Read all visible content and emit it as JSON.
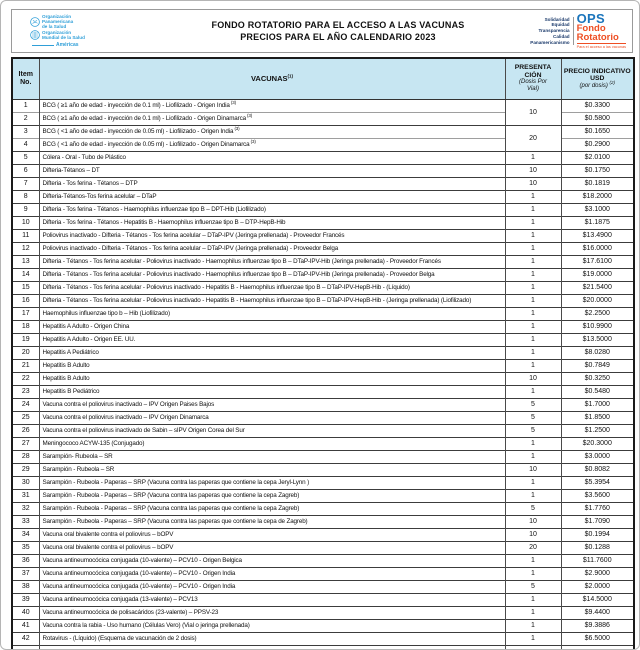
{
  "header": {
    "title_line1": "FONDO ROTATORIO PARA EL ACCESO A LAS VACUNAS",
    "title_line2": "PRECIOS PARA EL AÑO CALENDARIO 2023",
    "paho_logo": {
      "org1": [
        "Organización",
        "Panamericana",
        "de la Salud"
      ],
      "org2": [
        "Organización",
        "Mundial de la Salud"
      ],
      "region": "Américas"
    },
    "ops_logo": {
      "values": [
        "Solidaridad",
        "Equidad",
        "Transparencia",
        "Calidad",
        "Panamericanismo"
      ],
      "acronym": "OPS",
      "name_line1": "Fondo",
      "name_line2": "Rotatorio",
      "tagline": "Para el acceso a las vacunas"
    },
    "colors": {
      "paho_blue": "#2f9fd8",
      "ops_blue": "#1b75bc",
      "ops_orange": "#ee4e23",
      "navy": "#1b3a6b",
      "table_header_bg": "#c7e6f2"
    }
  },
  "table": {
    "header": {
      "item_line1": "Item",
      "item_line2": "No.",
      "vacunas": "VACUNAS",
      "vacunas_sup": "(1)",
      "presentacion_line1": "PRESENTA",
      "presentacion_line2": "CIÓN",
      "presentacion_sub1": "(Dosis Por",
      "presentacion_sub2": "Vial)",
      "precio_line1": "PRECIO INDICATIVO",
      "precio_line2": "USD",
      "precio_sub": "(por dosis)",
      "precio_sup": "(2)"
    },
    "rows": [
      {
        "no": "1",
        "vacuna": "BCG ( ≥1 año de edad - inyección de 0.1 ml) - Liofilizado - Origen India",
        "note": "(3)",
        "dosis": "10",
        "span": 2,
        "precio": "$0.3300"
      },
      {
        "no": "2",
        "vacuna": "BCG ( ≥1 año de edad - inyección de 0.1 ml) - Liofilizado - Origen Dinamarca",
        "note": "(3)",
        "precio": "$0.5800",
        "light": true
      },
      {
        "no": "3",
        "vacuna": "BCG ( <1 año de edad - inyección de 0.05 ml) - Liofilizado - Origen India",
        "note": "(3)",
        "dosis": "20",
        "span": 2,
        "precio": "$0.1650"
      },
      {
        "no": "4",
        "vacuna": "BCG ( <1 año de edad - inyección de 0.05 ml) - Liofilizado - Origen Dinamarca",
        "note": "(3)",
        "precio": "$0.2900",
        "light": true
      },
      {
        "no": "5",
        "vacuna": "Cólera - Oral - Tubo de Plástico",
        "dosis": "1",
        "precio": "$2.0100"
      },
      {
        "no": "6",
        "vacuna": "Difteria-Tétanos – DT",
        "dosis": "10",
        "precio": "$0.1750"
      },
      {
        "no": "7",
        "vacuna": "Difteria - Tos ferina - Tétanos – DTP",
        "dosis": "10",
        "precio": "$0.1819"
      },
      {
        "no": "8",
        "vacuna": "Difteria-Tétanos-Tos ferina acelular – DTaP",
        "dosis": "1",
        "precio": "$18.2000"
      },
      {
        "no": "9",
        "vacuna": "Difteria - Tos ferina - Tétanos - Haemophilus influenzae tipo B – DPT-Hib (Liofilizado)",
        "dosis": "1",
        "precio": "$3.1000"
      },
      {
        "no": "10",
        "vacuna": "Difteria - Tos ferina - Tétanos - Hepatitis B - Haemophilus influenzae tipo B – DTP-HepB-Hib",
        "dosis": "1",
        "precio": "$1.1875"
      },
      {
        "no": "11",
        "vacuna": "Poliovirus inactivado - Difteria - Tétanos - Tos ferina acelular – DTaP-IPV (Jeringa prellenada) - Proveedor Francés",
        "dosis": "1",
        "precio": "$13.4900"
      },
      {
        "no": "12",
        "vacuna": "Poliovirus inactivado - Difteria - Tétanos - Tos ferina acelular – DTaP-IPV (Jeringa prellenada) - Proveedor Belga",
        "dosis": "1",
        "precio": "$16.0000"
      },
      {
        "no": "13",
        "vacuna": "Difteria - Tétanos - Tos ferina acelular - Poliovirus inactivado - Haemophilus influenzae tipo B – DTaP-IPV-Hib (Jeringa prellenada) - Proveedor Francés",
        "dosis": "1",
        "precio": "$17.6100"
      },
      {
        "no": "14",
        "vacuna": "Difteria - Tétanos - Tos ferina acelular - Poliovirus inactivado - Haemophilus influenzae tipo B – DTaP-IPV-Hib (Jeringa prellenada) - Proveedor Belga",
        "dosis": "1",
        "precio": "$19.0000"
      },
      {
        "no": "15",
        "vacuna": "Difteria - Tétanos - Tos ferina acelular - Poliovirus inactivado - Hepatitis B - Haemophilus influenzae tipo B – DTaP-IPV-HepB-Hib - (Líquido)",
        "dosis": "1",
        "precio": "$21.5400"
      },
      {
        "no": "16",
        "vacuna": "Difteria - Tétanos - Tos ferina acelular - Poliovirus inactivado - Hepatitis B - Haemophilus influenzae tipo B – DTaP-IPV-HepB-Hib - (Jeringa prellenada) (Liofilizado)",
        "dosis": "1",
        "precio": "$20.0000"
      },
      {
        "no": "17",
        "vacuna": "Haemophilus influenzae tipo b – Hib (Liofilizado)",
        "dosis": "1",
        "precio": "$2.2500"
      },
      {
        "no": "18",
        "vacuna": "Hepatitis A Adulto - Origen China",
        "dosis": "1",
        "precio": "$10.9900"
      },
      {
        "no": "19",
        "vacuna": "Hepatitis A Adulto - Origen EE. UU.",
        "dosis": "1",
        "precio": "$13.5000"
      },
      {
        "no": "20",
        "vacuna": "Hepatitis A Pediátrico",
        "dosis": "1",
        "precio": "$8.0280"
      },
      {
        "no": "21",
        "vacuna": "Hepatitis B Adulto",
        "dosis": "1",
        "precio": "$0.7849"
      },
      {
        "no": "22",
        "vacuna": "Hepatitis B Adulto",
        "dosis": "10",
        "precio": "$0.3250"
      },
      {
        "no": "23",
        "vacuna": "Hepatitis B Pediátrico",
        "dosis": "1",
        "precio": "$0.5480"
      },
      {
        "no": "24",
        "vacuna": "Vacuna contra el poliovirus inactivado – IPV Origen Paises Bajos",
        "dosis": "5",
        "precio": "$1.7000"
      },
      {
        "no": "25",
        "vacuna": "Vacuna contra el poliovirus inactivado – IPV Origen Dinamarca",
        "dosis": "5",
        "precio": "$1.8500"
      },
      {
        "no": "26",
        "vacuna": "Vacuna contra el poliovirus inactivado de Sabin – sIPV Origen Corea del Sur",
        "dosis": "5",
        "precio": "$1.2500"
      },
      {
        "no": "27",
        "vacuna": "Meningococo ACYW-135 (Conjugado)",
        "dosis": "1",
        "precio": "$20.3000"
      },
      {
        "no": "28",
        "vacuna": "Sarampión- Rubeola – SR",
        "dosis": "1",
        "precio": "$3.0000"
      },
      {
        "no": "29",
        "vacuna": "Sarampión - Rubeola – SR",
        "dosis": "10",
        "precio": "$0.8082"
      },
      {
        "no": "30",
        "vacuna": "Sarampión - Rubeola - Paperas – SRP (Vacuna contra las paperas que contiene la cepa Jeryl-Lynn )",
        "dosis": "1",
        "precio": "$5.3954"
      },
      {
        "no": "31",
        "vacuna": "Sarampión - Rubeola - Paperas – SRP (Vacuna contra las paperas que contiene la cepa Zagreb)",
        "dosis": "1",
        "precio": "$3.5600"
      },
      {
        "no": "32",
        "vacuna": "Sarampión - Rubeola - Paperas – SRP (Vacuna contra las paperas que contiene la cepa Zagreb)",
        "dosis": "5",
        "precio": "$1.7760"
      },
      {
        "no": "33",
        "vacuna": "Sarampión - Rubeola - Paperas – SRP (Vacuna contra las paperas que contiene la cepa de Zagreb)",
        "dosis": "10",
        "precio": "$1.7090"
      },
      {
        "no": "34",
        "vacuna": "Vacuna oral bivalente contra el poliovirus – bOPV",
        "dosis": "10",
        "precio": "$0.1994"
      },
      {
        "no": "35",
        "vacuna": "Vacuna oral bivalente contra el poliovirus – bOPV",
        "dosis": "20",
        "precio": "$0.1288"
      },
      {
        "no": "36",
        "vacuna": "Vacuna antineumocócica conjugada (10-valente) – PCV10 - Origen Belgica",
        "dosis": "1",
        "precio": "$11.7600"
      },
      {
        "no": "37",
        "vacuna": "Vacuna antineumocócica conjugada (10-valente) – PCV10 - Origen India",
        "dosis": "1",
        "precio": "$2.9000"
      },
      {
        "no": "38",
        "vacuna": "Vacuna antineumocócica conjugada (10-valente) – PCV10 - Origen India",
        "dosis": "5",
        "precio": "$2.0000"
      },
      {
        "no": "39",
        "vacuna": "Vacuna antineumocócica conjugada (13-valente) – PCV13",
        "dosis": "1",
        "precio": "$14.5000"
      },
      {
        "no": "40",
        "vacuna": "Vacuna antineumocócica de polisacáridos (23-valente) – PPSV-23",
        "dosis": "1",
        "precio": "$9.4400"
      },
      {
        "no": "41",
        "vacuna": "Vacuna contra la rabia - Uso humano (Células Vero) (Vial o jeringa prellenada)",
        "dosis": "1",
        "precio": "$9.3886"
      },
      {
        "no": "42",
        "vacuna": "Rotavirus - (Líquido) (Esquema de vacunación de 2 dosis)",
        "dosis": "1",
        "precio": "$6.5000"
      }
    ]
  }
}
